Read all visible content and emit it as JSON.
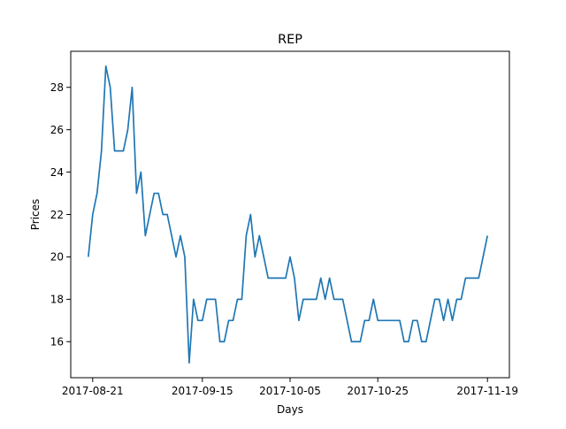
{
  "chart_data": {
    "type": "line",
    "title": "REP",
    "xlabel": "Days",
    "ylabel": "Prices",
    "x_ticks": [
      "2017-08-21",
      "2017-09-15",
      "2017-10-05",
      "2017-10-25",
      "2017-11-19"
    ],
    "y_ticks": [
      16,
      18,
      20,
      22,
      24,
      26,
      28
    ],
    "ylim": [
      14.3,
      29.7
    ],
    "xlim": [
      "2017-08-16",
      "2017-11-24"
    ],
    "grid": false,
    "series": [
      {
        "color": "#1f77b4",
        "x": [
          "2017-08-20",
          "2017-08-21",
          "2017-08-22",
          "2017-08-23",
          "2017-08-24",
          "2017-08-25",
          "2017-08-26",
          "2017-08-27",
          "2017-08-28",
          "2017-08-29",
          "2017-08-30",
          "2017-08-31",
          "2017-09-01",
          "2017-09-02",
          "2017-09-03",
          "2017-09-04",
          "2017-09-05",
          "2017-09-06",
          "2017-09-07",
          "2017-09-08",
          "2017-09-09",
          "2017-09-10",
          "2017-09-11",
          "2017-09-12",
          "2017-09-13",
          "2017-09-14",
          "2017-09-15",
          "2017-09-16",
          "2017-09-17",
          "2017-09-18",
          "2017-09-19",
          "2017-09-20",
          "2017-09-21",
          "2017-09-22",
          "2017-09-23",
          "2017-09-24",
          "2017-09-25",
          "2017-09-26",
          "2017-09-27",
          "2017-09-28",
          "2017-09-29",
          "2017-09-30",
          "2017-10-01",
          "2017-10-02",
          "2017-10-03",
          "2017-10-04",
          "2017-10-05",
          "2017-10-06",
          "2017-10-07",
          "2017-10-08",
          "2017-10-09",
          "2017-10-10",
          "2017-10-11",
          "2017-10-12",
          "2017-10-13",
          "2017-10-14",
          "2017-10-15",
          "2017-10-16",
          "2017-10-17",
          "2017-10-18",
          "2017-10-19",
          "2017-10-20",
          "2017-10-21",
          "2017-10-22",
          "2017-10-23",
          "2017-10-24",
          "2017-10-25",
          "2017-10-26",
          "2017-10-27",
          "2017-10-28",
          "2017-10-29",
          "2017-10-30",
          "2017-10-31",
          "2017-11-01",
          "2017-11-02",
          "2017-11-03",
          "2017-11-04",
          "2017-11-05",
          "2017-11-06",
          "2017-11-07",
          "2017-11-08",
          "2017-11-09",
          "2017-11-10",
          "2017-11-11",
          "2017-11-12",
          "2017-11-13",
          "2017-11-14",
          "2017-11-15",
          "2017-11-16",
          "2017-11-17",
          "2017-11-18",
          "2017-11-19"
        ],
        "values": [
          20,
          22,
          23,
          25,
          29,
          28,
          25,
          25,
          25,
          26,
          28,
          23,
          24,
          21,
          22,
          23,
          23,
          22,
          22,
          21,
          20,
          21,
          20,
          15,
          18,
          17,
          17,
          18,
          18,
          18,
          16,
          16,
          17,
          17,
          18,
          18,
          21,
          22,
          20,
          21,
          20,
          19,
          19,
          19,
          19,
          19,
          20,
          19,
          17,
          18,
          18,
          18,
          18,
          19,
          18,
          19,
          18,
          18,
          18,
          17,
          16,
          16,
          16,
          17,
          17,
          18,
          17,
          17,
          17,
          17,
          17,
          17,
          16,
          16,
          17,
          17,
          16,
          16,
          17,
          18,
          18,
          17,
          18,
          17,
          18,
          18,
          19,
          19,
          19,
          19,
          20,
          21
        ]
      }
    ]
  }
}
